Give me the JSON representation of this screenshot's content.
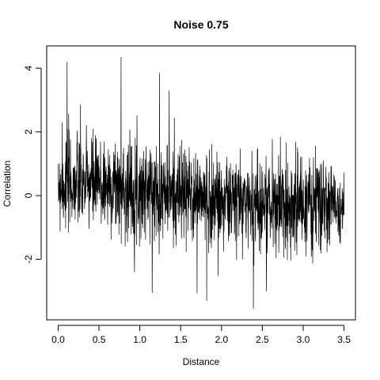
{
  "chart_data": {
    "type": "line",
    "title": "Noise 0.75",
    "xlabel": "Distance",
    "ylabel": "Correlation",
    "xlim": [
      -0.14,
      3.64
    ],
    "ylim": [
      -3.9,
      4.7
    ],
    "xticks": [
      0.0,
      0.5,
      1.0,
      1.5,
      2.0,
      2.5,
      3.0,
      3.5
    ],
    "xtick_labels": [
      "0.0",
      "0.5",
      "1.0",
      "1.5",
      "2.0",
      "2.5",
      "3.0",
      "3.5"
    ],
    "yticks": [
      -2,
      0,
      2,
      4
    ],
    "ytick_labels": [
      "-2",
      "0",
      "2",
      "4"
    ],
    "grid": false,
    "series": [
      {
        "x_start": 0.0,
        "x_end": 3.5,
        "num_points": 1600,
        "trend": [
          [
            0.0,
            0.4
          ],
          [
            0.5,
            0.35
          ],
          [
            1.0,
            0.2
          ],
          [
            1.5,
            0.05
          ],
          [
            2.0,
            -0.15
          ],
          [
            2.5,
            -0.25
          ],
          [
            3.0,
            -0.3
          ],
          [
            3.5,
            -0.3
          ]
        ],
        "noise_sd": 0.75,
        "seed": 7,
        "spikes": [
          [
            0.0,
            1.0
          ],
          [
            0.05,
            2.3
          ],
          [
            0.11,
            4.2
          ],
          [
            0.77,
            4.35
          ],
          [
            1.24,
            3.85
          ],
          [
            1.36,
            3.3
          ],
          [
            2.39,
            -3.55
          ],
          [
            1.82,
            -3.3
          ],
          [
            2.55,
            -3.0
          ],
          [
            3.5,
            -0.6
          ]
        ],
        "color": "#000000"
      }
    ]
  }
}
